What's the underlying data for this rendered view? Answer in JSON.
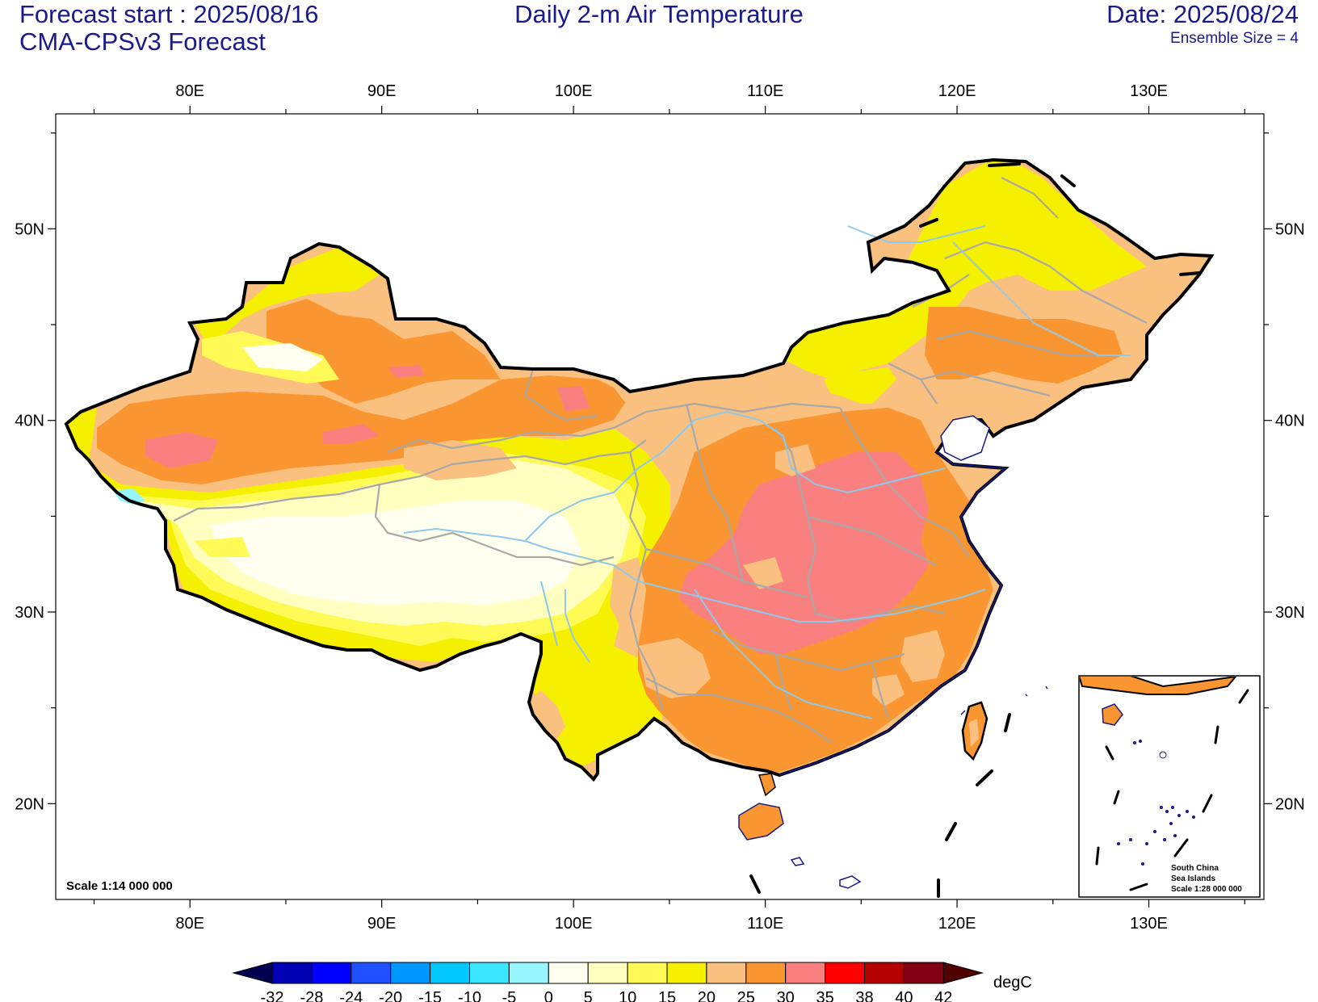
{
  "header": {
    "forecast_start": "Forecast start : 2025/08/16",
    "model": "CMA-CPSv3 Forecast",
    "title": "Daily 2-m Air Temperature",
    "date": "Date: 2025/08/24",
    "ensemble": "Ensemble Size = 4"
  },
  "map": {
    "lon_ticks": [
      "80E",
      "90E",
      "100E",
      "110E",
      "120E",
      "130E"
    ],
    "lat_ticks": [
      "50N",
      "40N",
      "30N",
      "20N"
    ],
    "scale_label": "Scale 1:14 000 000",
    "inset": {
      "line1": "South China",
      "line2": "Sea Islands",
      "line3": "Scale 1:28 000 000"
    },
    "lon_range": [
      73,
      136
    ],
    "lat_range": [
      15,
      56
    ]
  },
  "colorbar": {
    "unit": "degC",
    "labels": [
      "-32",
      "-28",
      "-24",
      "-20",
      "-15",
      "-10",
      "-5",
      "0",
      "5",
      "10",
      "15",
      "20",
      "25",
      "30",
      "35",
      "38",
      "40",
      "42"
    ],
    "colors": [
      "#000050",
      "#0000b4",
      "#0000ff",
      "#1e50ff",
      "#0096ff",
      "#00c8ff",
      "#3ce6ff",
      "#96f5ff",
      "#fffff0",
      "#ffffc0",
      "#fffa55",
      "#f5f000",
      "#fac080",
      "#fa9632",
      "#fa8080",
      "#ff0000",
      "#b40000",
      "#820014",
      "#500000"
    ]
  }
}
